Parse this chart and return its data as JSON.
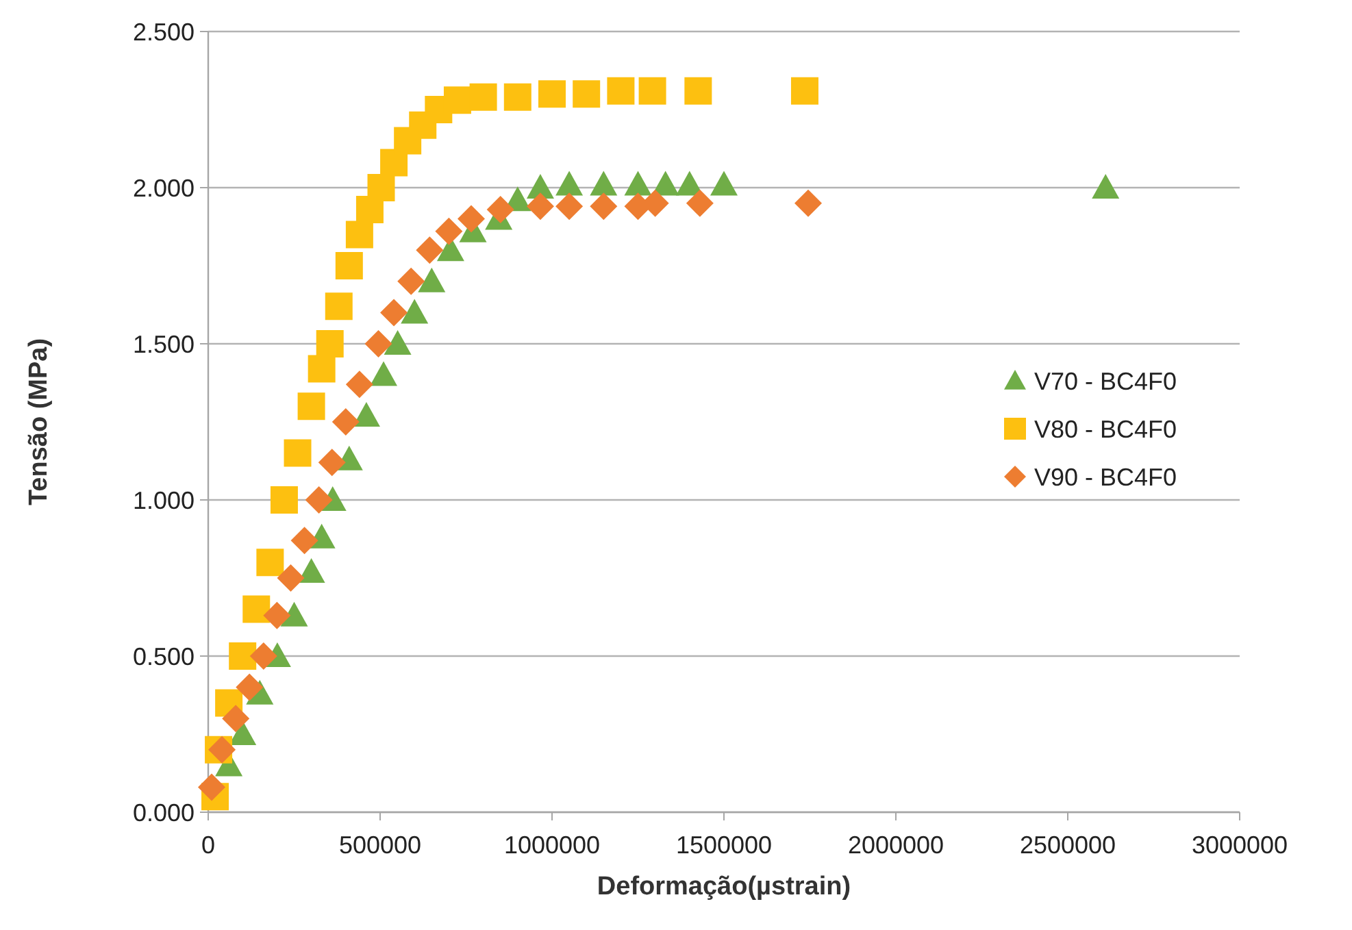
{
  "chart_data": {
    "type": "scatter",
    "xlabel": "Deformação(µstrain)",
    "ylabel": "Tensão (MPa)",
    "xlim": [
      0,
      3000000
    ],
    "xticks": [
      0,
      500000,
      1000000,
      1500000,
      2000000,
      2500000,
      3000000
    ],
    "ylim": [
      0,
      2.5
    ],
    "yticks": [
      {
        "value": 0,
        "label": "0.000"
      },
      {
        "value": 0.5,
        "label": "0.500"
      },
      {
        "value": 1,
        "label": "1.000"
      },
      {
        "value": 1.5,
        "label": "1.500"
      },
      {
        "value": 2,
        "label": "2.000"
      },
      {
        "value": 2.5,
        "label": "2.500"
      }
    ],
    "grid": "y",
    "legend": "right",
    "series": [
      {
        "name": "V70 - BC4F0",
        "color": "#70ad47",
        "marker": "triangle",
        "x": [
          60000,
          100000,
          150000,
          201000,
          250000,
          300000,
          330000,
          362000,
          410000,
          460000,
          510000,
          551000,
          600000,
          650000,
          705000,
          770000,
          845000,
          900000,
          966000,
          1050000,
          1150000,
          1250000,
          1330000,
          1400000,
          1500000,
          2610000
        ],
        "values": [
          0.15,
          0.25,
          0.38,
          0.5,
          0.63,
          0.77,
          0.88,
          1.0,
          1.13,
          1.27,
          1.4,
          1.5,
          1.6,
          1.7,
          1.8,
          1.86,
          1.9,
          1.96,
          2.0,
          2.01,
          2.01,
          2.01,
          2.01,
          2.01,
          2.01,
          2.0
        ]
      },
      {
        "name": "V80 - BC4F0",
        "color": "#fdc010",
        "marker": "square",
        "x": [
          20000,
          30000,
          60000,
          100000,
          140000,
          180000,
          221000,
          260000,
          300000,
          330000,
          354000,
          380000,
          410000,
          440000,
          470000,
          503000,
          540000,
          580000,
          624000,
          670000,
          725000,
          800000,
          900000,
          1000000,
          1100000,
          1200000,
          1292000,
          1425000,
          1735000
        ],
        "values": [
          0.05,
          0.2,
          0.35,
          0.5,
          0.65,
          0.8,
          1.0,
          1.15,
          1.3,
          1.42,
          1.5,
          1.62,
          1.75,
          1.85,
          1.93,
          2.0,
          2.08,
          2.15,
          2.2,
          2.25,
          2.28,
          2.29,
          2.29,
          2.3,
          2.3,
          2.31,
          2.31,
          2.31,
          2.31
        ]
      },
      {
        "name": "V90 - BC4F0",
        "color": "#ed7d31",
        "marker": "diamond",
        "x": [
          10000,
          40000,
          80000,
          120000,
          161000,
          200000,
          240000,
          280000,
          322000,
          360000,
          400000,
          440000,
          495000,
          540000,
          590000,
          644000,
          700000,
          765000,
          850000,
          966000,
          1050000,
          1150000,
          1250000,
          1300000,
          1430000,
          1745000
        ],
        "values": [
          0.08,
          0.2,
          0.3,
          0.4,
          0.5,
          0.63,
          0.75,
          0.87,
          1.0,
          1.12,
          1.25,
          1.37,
          1.5,
          1.6,
          1.7,
          1.8,
          1.86,
          1.9,
          1.93,
          1.94,
          1.94,
          1.94,
          1.94,
          1.95,
          1.95,
          1.95
        ]
      }
    ]
  }
}
